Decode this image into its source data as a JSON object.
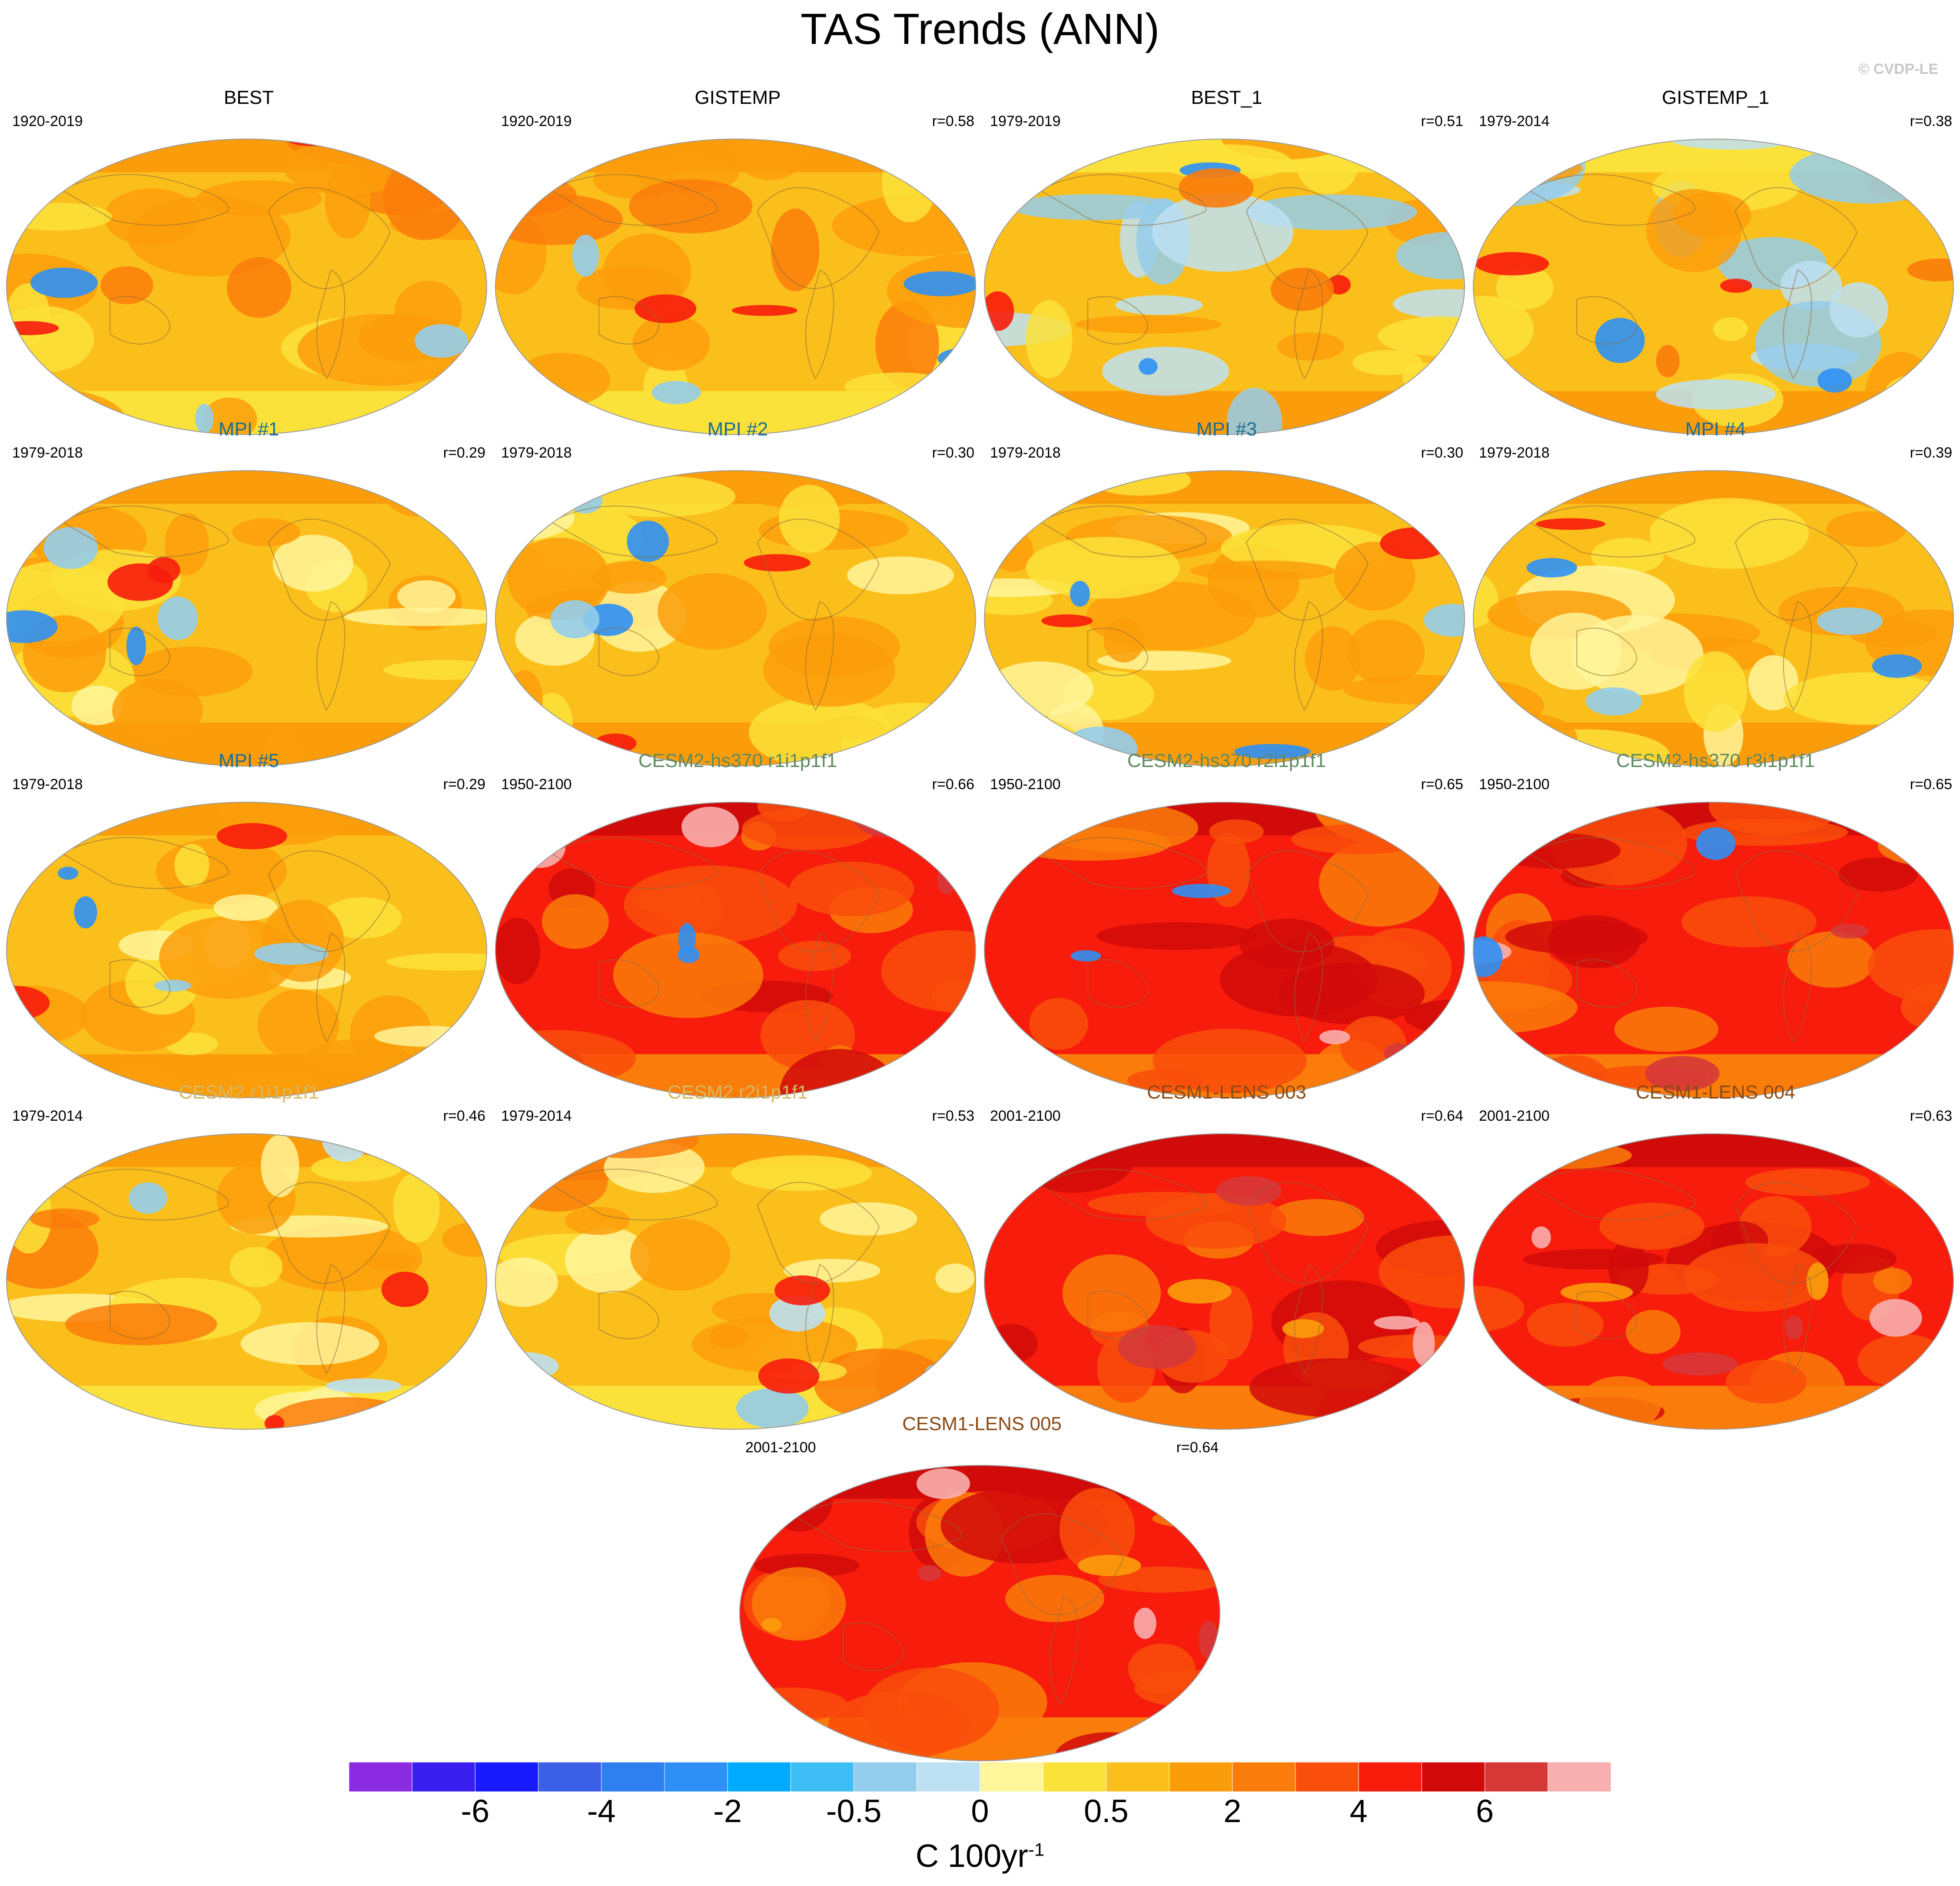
{
  "title": "TAS Trends (ANN)",
  "copyright": "© CVDP-LE",
  "colors": {
    "obs_title": "#000000",
    "mpi_title": "#1a6e96",
    "cesm2hs_title": "#5e8a5e",
    "cesm2_title": "#d4b860",
    "cesm1_title": "#8b4a14"
  },
  "panels": [
    {
      "title": "BEST",
      "period": "1920-2019",
      "r": "",
      "palette": "obs_warm",
      "title_color": "obs_title"
    },
    {
      "title": "GISTEMP",
      "period": "1920-2019",
      "r": "r=0.58",
      "palette": "obs_warm",
      "title_color": "obs_title"
    },
    {
      "title": "BEST_1",
      "period": "1979-2019",
      "r": "r=0.51",
      "palette": "obs_cool",
      "title_color": "obs_title"
    },
    {
      "title": "GISTEMP_1",
      "period": "1979-2014",
      "r": "r=0.38",
      "palette": "obs_cool",
      "title_color": "obs_title"
    },
    {
      "title": "MPI #1",
      "period": "1979-2018",
      "r": "r=0.29",
      "palette": "mpi",
      "title_color": "mpi_title"
    },
    {
      "title": "MPI #2",
      "period": "1979-2018",
      "r": "r=0.30",
      "palette": "mpi",
      "title_color": "mpi_title"
    },
    {
      "title": "MPI #3",
      "period": "1979-2018",
      "r": "r=0.30",
      "palette": "mpi",
      "title_color": "mpi_title"
    },
    {
      "title": "MPI #4",
      "period": "1979-2018",
      "r": "r=0.39",
      "palette": "mpi",
      "title_color": "mpi_title"
    },
    {
      "title": "MPI #5",
      "period": "1979-2018",
      "r": "r=0.29",
      "palette": "mpi",
      "title_color": "mpi_title"
    },
    {
      "title": "CESM2-hs370 r1i1p1f1",
      "period": "1950-2100",
      "r": "r=0.66",
      "palette": "hot",
      "title_color": "cesm2hs_title"
    },
    {
      "title": "CESM2-hs370 r2i1p1f1",
      "period": "1950-2100",
      "r": "r=0.65",
      "palette": "hot",
      "title_color": "cesm2hs_title"
    },
    {
      "title": "CESM2-hs370 r3i1p1f1",
      "period": "1950-2100",
      "r": "r=0.65",
      "palette": "hot",
      "title_color": "cesm2hs_title"
    },
    {
      "title": "CESM2 r1i1p1f1",
      "period": "1979-2014",
      "r": "r=0.46",
      "palette": "cesm2",
      "title_color": "cesm2_title"
    },
    {
      "title": "CESM2 r2i1p1f1",
      "period": "1979-2014",
      "r": "r=0.53",
      "palette": "cesm2",
      "title_color": "cesm2_title"
    },
    {
      "title": "CESM1-LENS 003",
      "period": "2001-2100",
      "r": "r=0.64",
      "palette": "hot2",
      "title_color": "cesm1_title"
    },
    {
      "title": "CESM1-LENS 004",
      "period": "2001-2100",
      "r": "r=0.63",
      "palette": "hot2",
      "title_color": "cesm1_title"
    },
    {
      "title": "CESM1-LENS 005",
      "period": "2001-2100",
      "r": "r=0.64",
      "palette": "hot2",
      "title_color": "cesm1_title"
    }
  ],
  "colorbar": {
    "colors": [
      "#8a2be2",
      "#3a1ef0",
      "#1a1aff",
      "#3b5fe6",
      "#2e7ff0",
      "#2e90f5",
      "#00aaff",
      "#3fbdf5",
      "#94cdeb",
      "#bde0f2",
      "#fff59a",
      "#fbe23a",
      "#fbbf1c",
      "#fb9d0b",
      "#fa7c0b",
      "#f94e0c",
      "#f71c0c",
      "#d10a0a",
      "#d63838",
      "#f8afaf"
    ],
    "labels": [
      "-6",
      "-4",
      "-2",
      "-0.5",
      "0",
      "0.5",
      "2",
      "4",
      "6"
    ],
    "units": "C 100yr",
    "units_exp": "-1"
  }
}
